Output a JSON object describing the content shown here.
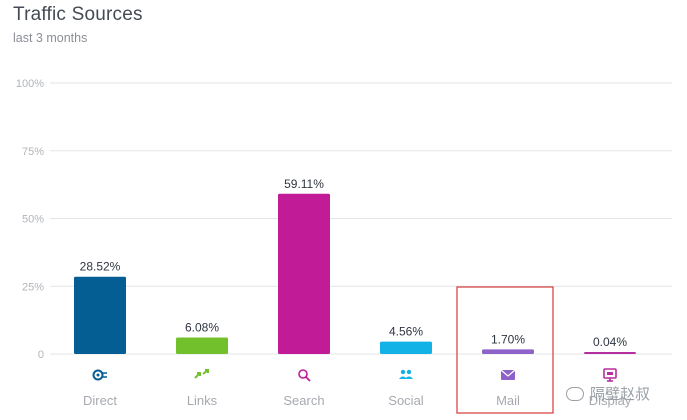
{
  "header": {
    "title": "Traffic Sources",
    "subtitle": "last 3 months"
  },
  "chart_data": {
    "type": "bar",
    "title": "Traffic Sources",
    "subtitle": "last 3 months",
    "categories": [
      "Direct",
      "Links",
      "Search",
      "Social",
      "Mail",
      "Display"
    ],
    "values": [
      28.52,
      6.08,
      59.11,
      4.56,
      1.7,
      0.04
    ],
    "value_labels": [
      "28.52%",
      "6.08%",
      "59.11%",
      "4.56%",
      "1.70%",
      "0.04%"
    ],
    "colors": [
      "#045d93",
      "#72c02c",
      "#c21b98",
      "#12b2e6",
      "#8e63c9",
      "#b52f9f"
    ],
    "icons": [
      "direct-icon",
      "links-icon",
      "search-icon",
      "social-icon",
      "mail-icon",
      "display-icon"
    ],
    "yticks": [
      "0",
      "25%",
      "50%",
      "75%",
      "100%"
    ],
    "ytick_values": [
      0,
      25,
      50,
      75,
      100
    ],
    "ylim": [
      0,
      100
    ],
    "grid": true,
    "highlight_category": "Mail",
    "highlight_color": "#d23a3a"
  },
  "watermark": {
    "text": "隔壁赵叔"
  }
}
